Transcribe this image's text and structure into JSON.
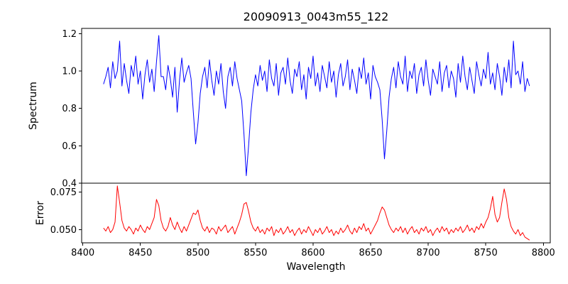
{
  "title": "20090913_0043m55_122",
  "chart_data": {
    "type": "line",
    "title": "20090913_0043m55_122",
    "xlabel": "Wavelength",
    "x_start": 8418,
    "x_step": 2,
    "xlim": [
      8399,
      8806
    ],
    "x_ticks": [
      8400,
      8450,
      8500,
      8550,
      8600,
      8650,
      8700,
      8750,
      8800
    ],
    "x_tick_labels": [
      "8400",
      "8450",
      "8500",
      "8550",
      "8600",
      "8650",
      "8700",
      "8750",
      "8800"
    ],
    "grid": false,
    "legend": "none",
    "panels": [
      {
        "name": "spectrum",
        "ylabel": "Spectrum",
        "color": "#0000ff",
        "ylim": [
          0.4,
          1.228
        ],
        "y_ticks": [
          0.4,
          0.6,
          0.8,
          1.0,
          1.2
        ],
        "y_tick_labels": [
          "0.4",
          "0.6",
          "0.8",
          "1.0",
          "1.2"
        ],
        "absorption_lines": [
          {
            "center": 8498,
            "depth": 0.61
          },
          {
            "center": 8542,
            "depth": 0.44
          },
          {
            "center": 8662,
            "depth": 0.53
          }
        ],
        "values": [
          0.93,
          0.97,
          1.02,
          0.91,
          1.05,
          0.96,
          1.0,
          1.16,
          0.92,
          1.04,
          0.95,
          0.88,
          1.03,
          0.97,
          1.08,
          0.93,
          1.0,
          0.85,
          0.98,
          1.06,
          0.94,
          1.01,
          0.89,
          1.05,
          1.19,
          0.97,
          0.97,
          0.9,
          1.03,
          0.96,
          0.86,
          1.02,
          0.78,
          0.95,
          1.07,
          0.94,
          0.99,
          1.03,
          0.96,
          0.78,
          0.61,
          0.72,
          0.88,
          0.97,
          1.02,
          0.91,
          1.06,
          0.95,
          0.87,
          1.0,
          0.93,
          1.04,
          0.89,
          0.8,
          0.97,
          1.02,
          0.92,
          1.05,
          0.96,
          0.9,
          0.84,
          0.66,
          0.44,
          0.6,
          0.78,
          0.9,
          0.98,
          0.92,
          1.03,
          0.95,
          1.0,
          0.89,
          1.06,
          0.96,
          0.92,
          1.04,
          0.87,
          0.99,
          1.02,
          0.93,
          1.07,
          0.95,
          0.88,
          1.01,
          0.97,
          1.05,
          0.9,
          0.98,
          0.85,
          1.02,
          0.96,
          1.08,
          0.92,
          0.99,
          0.89,
          1.03,
          0.97,
          0.91,
          1.05,
          0.94,
          1.0,
          0.86,
          0.98,
          1.04,
          0.92,
          0.97,
          1.06,
          0.9,
          1.01,
          0.95,
          0.88,
          1.02,
          0.96,
          1.07,
          0.93,
          0.99,
          0.85,
          1.03,
          0.97,
          0.94,
          0.9,
          0.74,
          0.53,
          0.68,
          0.86,
          0.96,
          1.02,
          0.91,
          1.05,
          0.97,
          0.93,
          1.08,
          0.89,
          1.0,
          0.96,
          1.04,
          0.88,
          0.98,
          1.02,
          0.92,
          1.06,
          0.95,
          0.87,
          1.01,
          0.97,
          0.93,
          1.05,
          0.89,
          0.99,
          1.03,
          0.91,
          1.0,
          0.96,
          0.86,
          1.04,
          0.94,
          1.08,
          0.97,
          0.9,
          1.02,
          0.95,
          0.88,
          1.05,
          0.98,
          0.92,
          1.01,
          0.96,
          1.1,
          0.93,
          0.99,
          0.9,
          1.04,
          0.97,
          0.87,
          1.02,
          0.94,
          1.06,
          0.91,
          1.16,
          0.98,
          1.0,
          0.93,
          1.05,
          0.89,
          0.96,
          0.92
        ]
      },
      {
        "name": "error",
        "ylabel": "Error",
        "color": "#ff0000",
        "ylim": [
          0.0412,
          0.0808
        ],
        "y_ticks": [
          0.05,
          0.075
        ],
        "y_tick_labels": [
          "0.050",
          "0.075"
        ],
        "values": [
          0.051,
          0.049,
          0.052,
          0.048,
          0.05,
          0.055,
          0.079,
          0.068,
          0.056,
          0.051,
          0.049,
          0.052,
          0.05,
          0.047,
          0.051,
          0.049,
          0.053,
          0.05,
          0.048,
          0.052,
          0.05,
          0.054,
          0.058,
          0.07,
          0.066,
          0.056,
          0.051,
          0.049,
          0.052,
          0.058,
          0.053,
          0.05,
          0.055,
          0.051,
          0.048,
          0.052,
          0.049,
          0.053,
          0.057,
          0.061,
          0.06,
          0.063,
          0.056,
          0.051,
          0.049,
          0.052,
          0.048,
          0.051,
          0.05,
          0.047,
          0.052,
          0.049,
          0.051,
          0.053,
          0.048,
          0.05,
          0.052,
          0.047,
          0.051,
          0.055,
          0.06,
          0.067,
          0.068,
          0.062,
          0.055,
          0.051,
          0.049,
          0.052,
          0.048,
          0.05,
          0.047,
          0.051,
          0.049,
          0.052,
          0.046,
          0.05,
          0.048,
          0.051,
          0.047,
          0.049,
          0.052,
          0.048,
          0.05,
          0.046,
          0.049,
          0.051,
          0.047,
          0.05,
          0.048,
          0.052,
          0.049,
          0.046,
          0.05,
          0.048,
          0.051,
          0.047,
          0.049,
          0.052,
          0.048,
          0.05,
          0.046,
          0.049,
          0.047,
          0.051,
          0.048,
          0.05,
          0.053,
          0.049,
          0.047,
          0.051,
          0.048,
          0.052,
          0.05,
          0.054,
          0.049,
          0.051,
          0.047,
          0.05,
          0.053,
          0.056,
          0.061,
          0.065,
          0.063,
          0.058,
          0.053,
          0.05,
          0.048,
          0.051,
          0.049,
          0.052,
          0.048,
          0.051,
          0.047,
          0.05,
          0.052,
          0.048,
          0.05,
          0.047,
          0.051,
          0.049,
          0.052,
          0.048,
          0.05,
          0.046,
          0.049,
          0.051,
          0.048,
          0.052,
          0.049,
          0.051,
          0.047,
          0.05,
          0.048,
          0.051,
          0.049,
          0.052,
          0.048,
          0.05,
          0.053,
          0.049,
          0.051,
          0.048,
          0.052,
          0.05,
          0.054,
          0.051,
          0.055,
          0.058,
          0.064,
          0.072,
          0.06,
          0.055,
          0.058,
          0.068,
          0.077,
          0.07,
          0.058,
          0.052,
          0.049,
          0.047,
          0.05,
          0.046,
          0.048,
          0.045,
          0.044,
          0.043
        ]
      }
    ]
  }
}
